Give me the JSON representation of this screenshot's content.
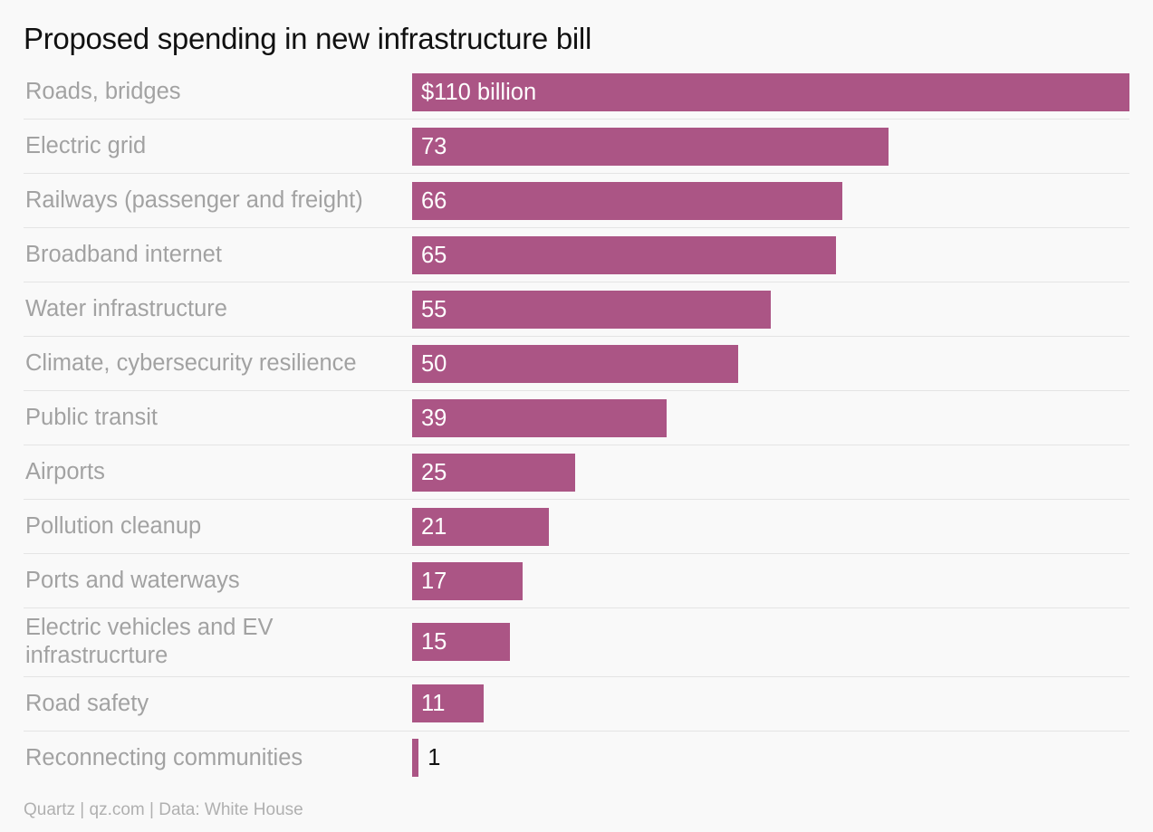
{
  "chart_data": {
    "type": "bar",
    "orientation": "horizontal",
    "title": "Proposed spending in new infrastructure bill",
    "categories": [
      "Roads, bridges",
      "Electric grid",
      "Railways (passenger and freight)",
      "Broadband internet",
      "Water infrastructure",
      "Climate, cybersecurity resilience",
      "Public transit",
      "Airports",
      "Pollution cleanup",
      "Ports and waterways",
      "Electric vehicles and EV infrastrucrture",
      "Road safety",
      "Reconnecting communities"
    ],
    "values": [
      110,
      73,
      66,
      65,
      55,
      50,
      39,
      25,
      21,
      17,
      15,
      11,
      1
    ],
    "value_labels": [
      "$110 billion",
      "73",
      "66",
      "65",
      "55",
      "50",
      "39",
      "25",
      "21",
      "17",
      "15",
      "11",
      "1"
    ],
    "color": "#ab5585",
    "source": "Quartz | qz.com | Data: White House"
  }
}
